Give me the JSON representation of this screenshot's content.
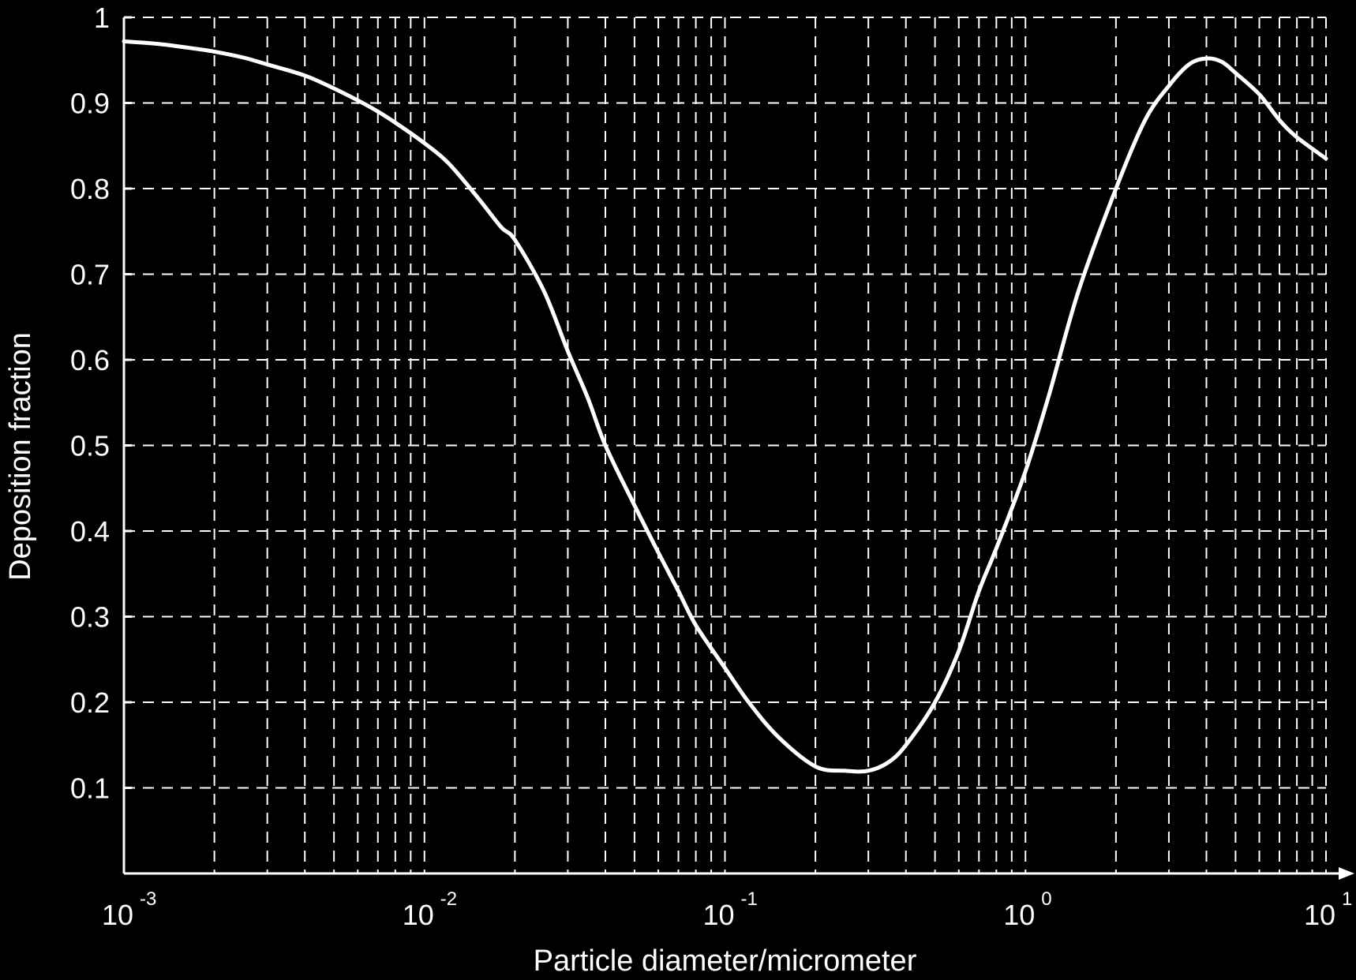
{
  "chart_data": {
    "type": "line",
    "title": "",
    "xlabel": "Particle diameter/micrometer",
    "ylabel": "Deposition fraction",
    "xscale": "log",
    "xlim": [
      0.001,
      10
    ],
    "ylim": [
      0,
      1
    ],
    "grid": true,
    "grid_style": "dashed",
    "background_color": "#000000",
    "foreground_color": "#ffffff",
    "line_color": "#ffffff",
    "x_ticks": [
      {
        "value": 0.001,
        "base": "10",
        "exp": "-3"
      },
      {
        "value": 0.01,
        "base": "10",
        "exp": "-2"
      },
      {
        "value": 0.1,
        "base": "10",
        "exp": "-1"
      },
      {
        "value": 1,
        "base": "10",
        "exp": "0"
      },
      {
        "value": 10,
        "base": "10",
        "exp": "1"
      }
    ],
    "y_ticks": [
      {
        "value": 0.1,
        "label": "0.1"
      },
      {
        "value": 0.2,
        "label": "0.2"
      },
      {
        "value": 0.3,
        "label": "0.3"
      },
      {
        "value": 0.4,
        "label": "0.4"
      },
      {
        "value": 0.5,
        "label": "0.5"
      },
      {
        "value": 0.6,
        "label": "0.6"
      },
      {
        "value": 0.7,
        "label": "0.7"
      },
      {
        "value": 0.8,
        "label": "0.8"
      },
      {
        "value": 0.9,
        "label": "0.9"
      },
      {
        "value": 1.0,
        "label": "1"
      }
    ],
    "series": [
      {
        "x": [
          0.001,
          0.0013,
          0.0016,
          0.002,
          0.0025,
          0.003,
          0.004,
          0.005,
          0.006,
          0.007,
          0.008,
          0.01,
          0.012,
          0.015,
          0.018,
          0.02,
          0.025,
          0.03,
          0.035,
          0.04,
          0.05,
          0.06,
          0.07,
          0.08,
          0.1,
          0.12,
          0.15,
          0.2,
          0.25,
          0.3,
          0.35,
          0.4,
          0.5,
          0.6,
          0.7,
          0.8,
          1.0,
          1.2,
          1.5,
          2.0,
          2.5,
          3.0,
          3.5,
          4.0,
          4.5,
          5.0,
          6.0,
          7.0,
          8.0,
          10.0
        ],
        "y": [
          0.972,
          0.969,
          0.965,
          0.96,
          0.953,
          0.945,
          0.932,
          0.917,
          0.903,
          0.89,
          0.877,
          0.853,
          0.83,
          0.79,
          0.755,
          0.74,
          0.68,
          0.61,
          0.555,
          0.5,
          0.43,
          0.375,
          0.33,
          0.29,
          0.24,
          0.2,
          0.16,
          0.125,
          0.12,
          0.12,
          0.13,
          0.15,
          0.2,
          0.26,
          0.33,
          0.38,
          0.47,
          0.56,
          0.68,
          0.8,
          0.88,
          0.92,
          0.945,
          0.952,
          0.948,
          0.935,
          0.91,
          0.88,
          0.86,
          0.835
        ]
      }
    ]
  }
}
